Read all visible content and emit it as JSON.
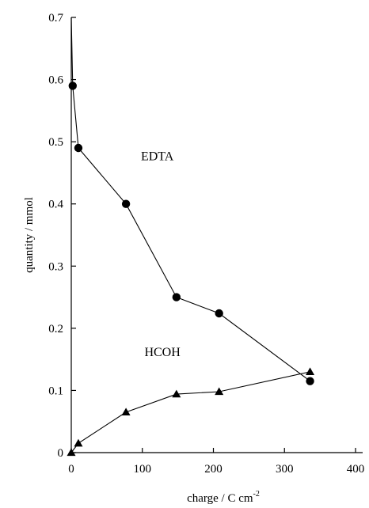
{
  "chart_data": {
    "type": "line",
    "xlabel": "charge / C cm",
    "xlabel_superscript": "-2",
    "ylabel": "quantity / mmol",
    "xlim": [
      0,
      400
    ],
    "ylim": [
      0,
      0.7
    ],
    "xticks": [
      0,
      100,
      200,
      300,
      400
    ],
    "xtick_labels": [
      "0",
      "100",
      "200",
      "300",
      "400"
    ],
    "yticks": [
      0,
      0.1,
      0.2,
      0.3,
      0.4,
      0.5,
      0.6,
      0.7
    ],
    "ytick_labels": [
      "0",
      "0.1",
      "0.2",
      "0.3",
      "0.4",
      "0.5",
      "0.6",
      "0.7"
    ],
    "grid": false,
    "series": [
      {
        "name": "EDTA",
        "marker": "circle",
        "points": [
          [
            0,
            0.7
          ],
          [
            2,
            0.59
          ],
          [
            10,
            0.49
          ],
          [
            77,
            0.4
          ],
          [
            148,
            0.25
          ],
          [
            208,
            0.224
          ],
          [
            336,
            0.115
          ]
        ]
      },
      {
        "name": "HCOH",
        "marker": "triangle",
        "points": [
          [
            0,
            0.0
          ],
          [
            10,
            0.015
          ],
          [
            77,
            0.065
          ],
          [
            148,
            0.094
          ],
          [
            208,
            0.098
          ],
          [
            336,
            0.13
          ]
        ]
      }
    ],
    "annotations": [
      {
        "text": "EDTA",
        "x": 98,
        "y": 0.47
      },
      {
        "text": "HCOH",
        "x": 103,
        "y": 0.155
      }
    ]
  }
}
